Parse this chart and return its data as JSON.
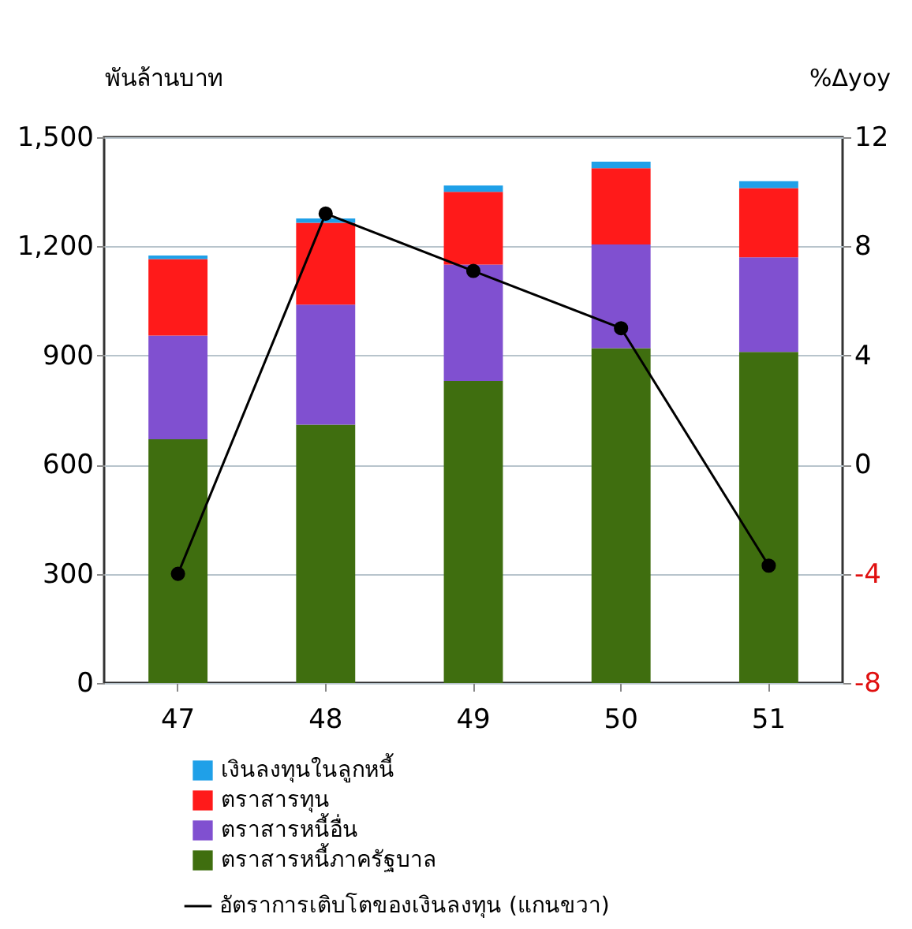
{
  "chart_data": {
    "type": "bar",
    "stacked": true,
    "ylabel": "พันล้านบาท",
    "y2label": "%Δyoy",
    "categories": [
      "47",
      "48",
      "49",
      "50",
      "51"
    ],
    "series": [
      {
        "name": "ตราสารหนี้ภาครัฐบาล",
        "color": "#3f6e0f",
        "values": [
          670,
          710,
          830,
          920,
          910
        ]
      },
      {
        "name": "ตราสารหนี้อื่น",
        "color": "#8050d0",
        "values": [
          285,
          330,
          320,
          285,
          260
        ]
      },
      {
        "name": "ตราสารทุน",
        "color": "#ff1a1a",
        "values": [
          210,
          225,
          200,
          210,
          190
        ]
      },
      {
        "name": "เงินลงทุนในลูกหนี้",
        "color": "#1fa0e8",
        "values": [
          10,
          12,
          17,
          18,
          19
        ]
      },
      {
        "name": "อัตราการเติบโตของเงินลงทุน (แกนขวา)",
        "type": "line",
        "axis": "y2",
        "color": "#000000",
        "marker": "circle",
        "line_style": "solid",
        "values": [
          -4.0,
          9.2,
          7.1,
          5.0,
          -3.7
        ]
      }
    ],
    "ylim": [
      0,
      1500
    ],
    "yticks": [
      0,
      300,
      600,
      900,
      {
        "value": 1200,
        "label": "1,200"
      },
      {
        "value": 1500,
        "label": "1,500"
      }
    ],
    "y2lim": [
      -8,
      12
    ],
    "y2ticks": [
      -8,
      -4,
      0,
      4,
      8,
      12
    ],
    "grid": "y",
    "legend": "bottom"
  }
}
